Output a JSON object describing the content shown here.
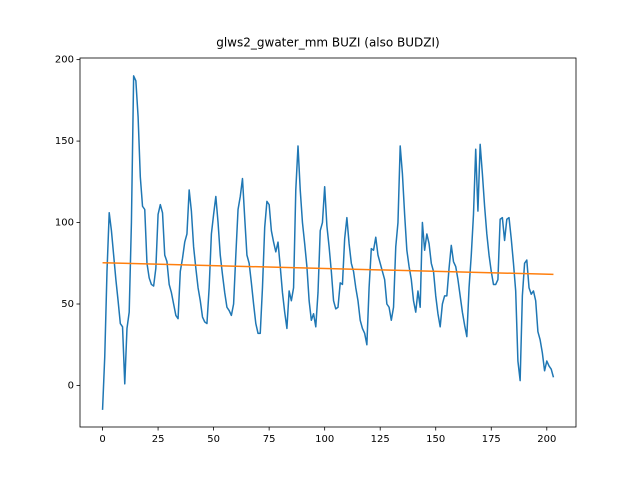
{
  "chart_data": {
    "type": "line",
    "title": "glws2_gwater_mm BUZI (also BUDZI)",
    "xlim": [
      -10.15,
      213.15
    ],
    "ylim": [
      -25.5,
      201
    ],
    "xticks": [
      0,
      25,
      50,
      75,
      100,
      125,
      150,
      175,
      200
    ],
    "yticks": [
      0,
      50,
      100,
      150,
      200
    ],
    "series": [
      {
        "color": "#1f77b4",
        "x": [
          0,
          1,
          2,
          3,
          4,
          5,
          6,
          7,
          8,
          9,
          10,
          11,
          12,
          13,
          14,
          15,
          16,
          17,
          18,
          19,
          20,
          21,
          22,
          23,
          24,
          25,
          26,
          27,
          28,
          29,
          30,
          31,
          32,
          33,
          34,
          35,
          36,
          37,
          38,
          39,
          40,
          41,
          42,
          43,
          44,
          45,
          46,
          47,
          48,
          49,
          50,
          51,
          52,
          53,
          54,
          55,
          56,
          57,
          58,
          59,
          60,
          61,
          62,
          63,
          64,
          65,
          66,
          67,
          68,
          69,
          70,
          71,
          72,
          73,
          74,
          75,
          76,
          77,
          78,
          79,
          80,
          81,
          82,
          83,
          84,
          85,
          86,
          87,
          88,
          89,
          90,
          91,
          92,
          93,
          94,
          95,
          96,
          97,
          98,
          99,
          100,
          101,
          102,
          103,
          104,
          105,
          106,
          107,
          108,
          109,
          110,
          111,
          112,
          113,
          114,
          115,
          116,
          117,
          118,
          119,
          120,
          121,
          122,
          123,
          124,
          125,
          126,
          127,
          128,
          129,
          130,
          131,
          132,
          133,
          134,
          135,
          136,
          137,
          138,
          139,
          140,
          141,
          142,
          143,
          144,
          145,
          146,
          147,
          148,
          149,
          150,
          151,
          152,
          153,
          154,
          155,
          156,
          157,
          158,
          159,
          160,
          161,
          162,
          163,
          164,
          165,
          166,
          167,
          168,
          169,
          170,
          171,
          172,
          173,
          174,
          175,
          176,
          177,
          178,
          179,
          180,
          181,
          182,
          183,
          184,
          185,
          186,
          187,
          188,
          189,
          190,
          191,
          192,
          193,
          194,
          195,
          196,
          197,
          198,
          199,
          200,
          201,
          202,
          203
        ],
        "values": [
          -15,
          18,
          70,
          106,
          95,
          80,
          65,
          52,
          38,
          36,
          1,
          35,
          45,
          100,
          190,
          187,
          165,
          128,
          110,
          108,
          75,
          66,
          62,
          61,
          72,
          105,
          111,
          106,
          80,
          76,
          62,
          57,
          50,
          43,
          41,
          70,
          78,
          88,
          93,
          120,
          107,
          85,
          72,
          60,
          52,
          42,
          39,
          38,
          60,
          93,
          105,
          116,
          100,
          80,
          68,
          57,
          48,
          46,
          43,
          50,
          80,
          108,
          116,
          127,
          103,
          80,
          75,
          63,
          50,
          38,
          32,
          32,
          60,
          97,
          113,
          111,
          95,
          88,
          82,
          88,
          73,
          57,
          45,
          35,
          58,
          52,
          60,
          120,
          147,
          120,
          100,
          87,
          73,
          52,
          40,
          44,
          36,
          57,
          95,
          100,
          122,
          98,
          85,
          70,
          52,
          47,
          48,
          63,
          62,
          90,
          103,
          87,
          75,
          70,
          60,
          52,
          40,
          35,
          32,
          25,
          60,
          84,
          83,
          91,
          80,
          75,
          70,
          65,
          50,
          48,
          40,
          48,
          85,
          100,
          147,
          130,
          105,
          83,
          73,
          65,
          52,
          45,
          58,
          48,
          100,
          83,
          93,
          87,
          75,
          70,
          55,
          44,
          36,
          50,
          55,
          55,
          72,
          86,
          76,
          73,
          65,
          55,
          45,
          37,
          30,
          60,
          80,
          105,
          145,
          107,
          148,
          130,
          110,
          93,
          80,
          70,
          62,
          62,
          65,
          102,
          103,
          89,
          102,
          103,
          90,
          75,
          58,
          15,
          3,
          55,
          75,
          77,
          60,
          56,
          58,
          52,
          33,
          28,
          20,
          9,
          15,
          12,
          10,
          5
        ]
      },
      {
        "color": "#ff7f0e",
        "x": [
          0,
          203
        ],
        "values": [
          75.3,
          68.2
        ]
      }
    ]
  }
}
